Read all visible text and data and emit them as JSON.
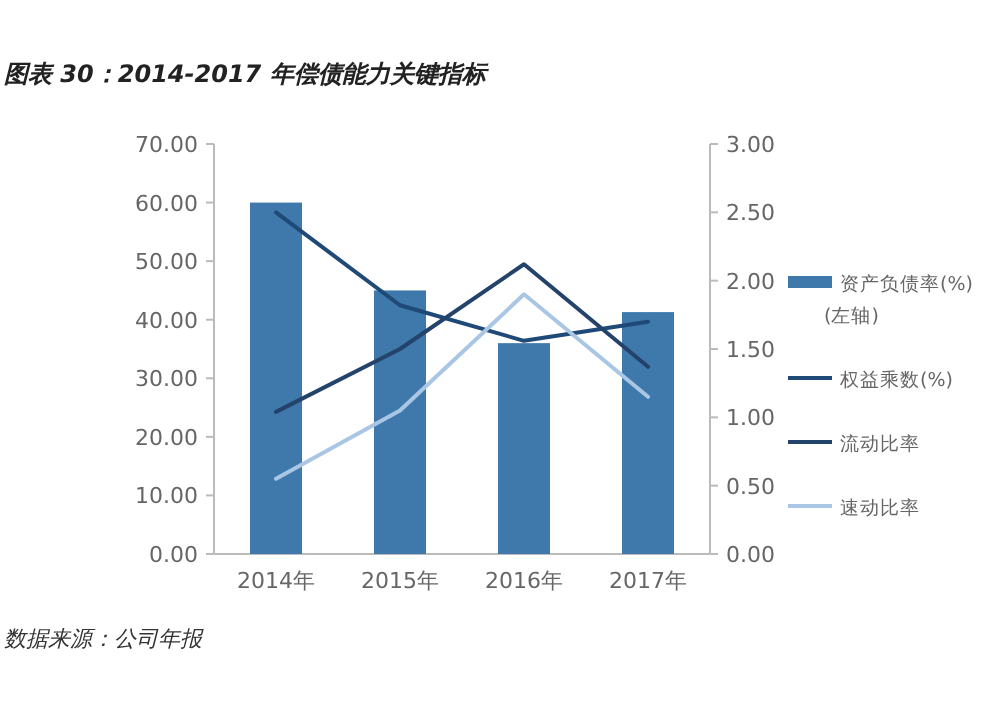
{
  "chart_data": {
    "type": "bar",
    "title": "图表 30：2014-2017 年偿债能力关键指标",
    "categories": [
      "2014年",
      "2015年",
      "2016年",
      "2017年"
    ],
    "series": [
      {
        "name": "资产负债率(%)\n(左轴)",
        "color": "#3f78ab",
        "values": [
          60.0,
          45.0,
          36.0,
          41.3
        ]
      },
      {
        "name": "权益乘数(%)",
        "type": "line",
        "axis": "y2",
        "color": "#1f4a78",
        "values": [
          2.5,
          1.82,
          1.56,
          1.7
        ]
      },
      {
        "name": "流动比率",
        "type": "line",
        "axis": "y2",
        "color": "#23436a",
        "values": [
          1.04,
          1.5,
          2.12,
          1.37
        ]
      },
      {
        "name": "速动比率",
        "type": "line",
        "axis": "y2",
        "color": "#a9c6e4",
        "values": [
          0.55,
          1.05,
          1.9,
          1.15
        ]
      }
    ],
    "ylim": [
      0,
      70
    ],
    "yticks": [
      {
        "value": 0,
        "label": "0.00"
      },
      {
        "value": 10,
        "label": "10.00"
      },
      {
        "value": 20,
        "label": "20.00"
      },
      {
        "value": 30,
        "label": "30.00"
      },
      {
        "value": 40,
        "label": "40.00"
      },
      {
        "value": 50,
        "label": "50.00"
      },
      {
        "value": 60,
        "label": "60.00"
      },
      {
        "value": 70,
        "label": "70.00"
      }
    ],
    "y2lim": [
      0,
      3
    ],
    "y2ticks": [
      {
        "value": 0,
        "label": "0.00"
      },
      {
        "value": 0.5,
        "label": "0.50"
      },
      {
        "value": 1,
        "label": "1.00"
      },
      {
        "value": 1.5,
        "label": "1.50"
      },
      {
        "value": 2,
        "label": "2.00"
      },
      {
        "value": 2.5,
        "label": "2.50"
      },
      {
        "value": 3,
        "label": "3.00"
      }
    ],
    "grid": false,
    "legend": "right",
    "annotations": [
      "数据来源：公司年报"
    ]
  }
}
